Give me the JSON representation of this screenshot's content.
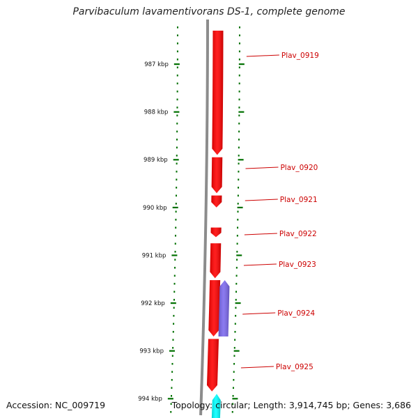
{
  "title": "Parvibaculum lavamentivorans DS-1, complete genome",
  "accession": {
    "label": "Accession:",
    "value": "NC_009719",
    "text": "Accession: NC_009719"
  },
  "summary": "Topology: circular; Length: 3,914,745 bp; Genes: 3,686",
  "colors": {
    "forward_gene": "#ff0000",
    "reverse_gene": "#7b68ee",
    "other_feature": "#00ffff",
    "backbone": "#8c8c8c",
    "tick": "#007000",
    "gene_label": "#cc0000"
  },
  "scale": {
    "unit": "kbp",
    "ticks": [
      {
        "kbp": 987,
        "label": "987 kbp"
      },
      {
        "kbp": 988,
        "label": "988 kbp"
      },
      {
        "kbp": 989,
        "label": "989 kbp"
      },
      {
        "kbp": 990,
        "label": "990 kbp"
      },
      {
        "kbp": 991,
        "label": "991 kbp"
      },
      {
        "kbp": 992,
        "label": "992 kbp"
      },
      {
        "kbp": 993,
        "label": "993 kbp"
      },
      {
        "kbp": 994,
        "label": "994 kbp"
      }
    ]
  },
  "genes": [
    {
      "label": "Plav_0919",
      "start_kbp": 986.3,
      "end_kbp": 988.9,
      "strand": "+"
    },
    {
      "label": "Plav_0920",
      "start_kbp": 988.95,
      "end_kbp": 989.7,
      "strand": "+"
    },
    {
      "label": "Plav_0921",
      "start_kbp": 989.75,
      "end_kbp": 990.0,
      "strand": "+"
    },
    {
      "label": "Plav_0922",
      "start_kbp": 990.42,
      "end_kbp": 990.62,
      "strand": "+"
    },
    {
      "label": "Plav_0923",
      "start_kbp": 990.75,
      "end_kbp": 991.48,
      "strand": "+"
    },
    {
      "label": "Plav_0924",
      "start_kbp": 991.52,
      "end_kbp": 992.7,
      "strand": "+"
    },
    {
      "label": "Plav_0925",
      "start_kbp": 992.75,
      "end_kbp": 993.85,
      "strand": "+"
    }
  ],
  "reverse_features": [
    {
      "start_kbp": 991.52,
      "end_kbp": 992.7,
      "strand": "-"
    }
  ],
  "other_features": [
    {
      "start_kbp": 993.9,
      "end_kbp": 994.5,
      "strand": "-"
    }
  ]
}
